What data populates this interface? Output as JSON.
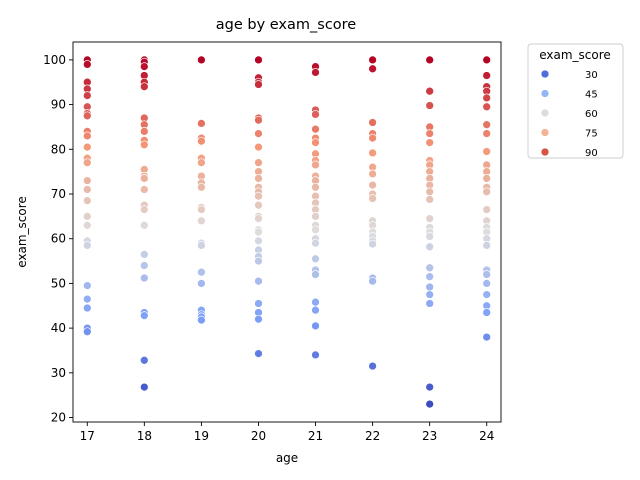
{
  "chart_data": {
    "type": "scatter",
    "title": "age by exam_score",
    "xlabel": "age",
    "ylabel": "exam_score",
    "x_ticks": [
      17,
      18,
      19,
      20,
      21,
      22,
      23,
      24
    ],
    "y_ticks": [
      20,
      30,
      40,
      50,
      60,
      70,
      80,
      90,
      100
    ],
    "xlim": [
      16.75,
      24.25
    ],
    "ylim": [
      19.0,
      104.0
    ],
    "grid": false,
    "legend": {
      "title": "exam_score",
      "placement": "outside-right",
      "entries": [
        {
          "label": "30",
          "color": "#4e6ed8"
        },
        {
          "label": "45",
          "color": "#95b5f7"
        },
        {
          "label": "60",
          "color": "#dddcdc"
        },
        {
          "label": "75",
          "color": "#f4b393"
        },
        {
          "label": "90",
          "color": "#d75445"
        }
      ]
    },
    "hue_range": [
      23,
      100
    ],
    "points": [
      {
        "x": 17,
        "y": 100
      },
      {
        "x": 17,
        "y": 99
      },
      {
        "x": 17,
        "y": 95
      },
      {
        "x": 17,
        "y": 93.5
      },
      {
        "x": 17,
        "y": 92
      },
      {
        "x": 17,
        "y": 89.5
      },
      {
        "x": 17,
        "y": 88
      },
      {
        "x": 17,
        "y": 87.5
      },
      {
        "x": 17,
        "y": 84
      },
      {
        "x": 17,
        "y": 83
      },
      {
        "x": 17,
        "y": 80.5
      },
      {
        "x": 17,
        "y": 78
      },
      {
        "x": 17,
        "y": 77
      },
      {
        "x": 17,
        "y": 73
      },
      {
        "x": 17,
        "y": 71
      },
      {
        "x": 17,
        "y": 68.5
      },
      {
        "x": 17,
        "y": 65
      },
      {
        "x": 17,
        "y": 63
      },
      {
        "x": 17,
        "y": 59.5
      },
      {
        "x": 17,
        "y": 58.5
      },
      {
        "x": 17,
        "y": 49.5
      },
      {
        "x": 17,
        "y": 46.5
      },
      {
        "x": 17,
        "y": 44.5
      },
      {
        "x": 17,
        "y": 40
      },
      {
        "x": 17,
        "y": 39.2
      },
      {
        "x": 18,
        "y": 100
      },
      {
        "x": 18,
        "y": 99.5
      },
      {
        "x": 18,
        "y": 98.5
      },
      {
        "x": 18,
        "y": 96.5
      },
      {
        "x": 18,
        "y": 95
      },
      {
        "x": 18,
        "y": 94
      },
      {
        "x": 18,
        "y": 87
      },
      {
        "x": 18,
        "y": 85.5
      },
      {
        "x": 18,
        "y": 84
      },
      {
        "x": 18,
        "y": 82
      },
      {
        "x": 18,
        "y": 81
      },
      {
        "x": 18,
        "y": 75.5
      },
      {
        "x": 18,
        "y": 74
      },
      {
        "x": 18,
        "y": 73.5
      },
      {
        "x": 18,
        "y": 71
      },
      {
        "x": 18,
        "y": 67.5
      },
      {
        "x": 18,
        "y": 66.5
      },
      {
        "x": 18,
        "y": 63
      },
      {
        "x": 18,
        "y": 56.5
      },
      {
        "x": 18,
        "y": 54
      },
      {
        "x": 18,
        "y": 51.2
      },
      {
        "x": 18,
        "y": 43.5
      },
      {
        "x": 18,
        "y": 42.8
      },
      {
        "x": 18,
        "y": 32.8
      },
      {
        "x": 18,
        "y": 26.8
      },
      {
        "x": 19,
        "y": 100
      },
      {
        "x": 19,
        "y": 85.8
      },
      {
        "x": 19,
        "y": 82.5
      },
      {
        "x": 19,
        "y": 81.8
      },
      {
        "x": 19,
        "y": 78
      },
      {
        "x": 19,
        "y": 77
      },
      {
        "x": 19,
        "y": 74
      },
      {
        "x": 19,
        "y": 72.5
      },
      {
        "x": 19,
        "y": 71.5
      },
      {
        "x": 19,
        "y": 67
      },
      {
        "x": 19,
        "y": 66.5
      },
      {
        "x": 19,
        "y": 64
      },
      {
        "x": 19,
        "y": 59
      },
      {
        "x": 19,
        "y": 58.5
      },
      {
        "x": 19,
        "y": 52.5
      },
      {
        "x": 19,
        "y": 50
      },
      {
        "x": 19,
        "y": 44
      },
      {
        "x": 19,
        "y": 43
      },
      {
        "x": 19,
        "y": 42.5
      },
      {
        "x": 19,
        "y": 41.8
      },
      {
        "x": 20,
        "y": 100
      },
      {
        "x": 20,
        "y": 96
      },
      {
        "x": 20,
        "y": 95
      },
      {
        "x": 20,
        "y": 94.5
      },
      {
        "x": 20,
        "y": 87
      },
      {
        "x": 20,
        "y": 86.5
      },
      {
        "x": 20,
        "y": 83.5
      },
      {
        "x": 20,
        "y": 80.5
      },
      {
        "x": 20,
        "y": 77
      },
      {
        "x": 20,
        "y": 75
      },
      {
        "x": 20,
        "y": 73.5
      },
      {
        "x": 20,
        "y": 71.5
      },
      {
        "x": 20,
        "y": 70.5
      },
      {
        "x": 20,
        "y": 69.5
      },
      {
        "x": 20,
        "y": 67.5
      },
      {
        "x": 20,
        "y": 65
      },
      {
        "x": 20,
        "y": 64.5
      },
      {
        "x": 20,
        "y": 62
      },
      {
        "x": 20,
        "y": 61.5
      },
      {
        "x": 20,
        "y": 59.5
      },
      {
        "x": 20,
        "y": 57.5
      },
      {
        "x": 20,
        "y": 56
      },
      {
        "x": 20,
        "y": 55
      },
      {
        "x": 20,
        "y": 50.5
      },
      {
        "x": 20,
        "y": 45.5
      },
      {
        "x": 20,
        "y": 43.5
      },
      {
        "x": 20,
        "y": 42
      },
      {
        "x": 20,
        "y": 34.3
      },
      {
        "x": 21,
        "y": 98.5
      },
      {
        "x": 21,
        "y": 97.2
      },
      {
        "x": 21,
        "y": 88.8
      },
      {
        "x": 21,
        "y": 87.8
      },
      {
        "x": 21,
        "y": 84.5
      },
      {
        "x": 21,
        "y": 82.5
      },
      {
        "x": 21,
        "y": 81.5
      },
      {
        "x": 21,
        "y": 79
      },
      {
        "x": 21,
        "y": 77.5
      },
      {
        "x": 21,
        "y": 76.5
      },
      {
        "x": 21,
        "y": 74
      },
      {
        "x": 21,
        "y": 73
      },
      {
        "x": 21,
        "y": 71.5
      },
      {
        "x": 21,
        "y": 69.5
      },
      {
        "x": 21,
        "y": 68
      },
      {
        "x": 21,
        "y": 66.5
      },
      {
        "x": 21,
        "y": 65
      },
      {
        "x": 21,
        "y": 63
      },
      {
        "x": 21,
        "y": 62
      },
      {
        "x": 21,
        "y": 60
      },
      {
        "x": 21,
        "y": 59
      },
      {
        "x": 21,
        "y": 55.5
      },
      {
        "x": 21,
        "y": 53
      },
      {
        "x": 21,
        "y": 52
      },
      {
        "x": 21,
        "y": 45.8
      },
      {
        "x": 21,
        "y": 44
      },
      {
        "x": 21,
        "y": 40.5
      },
      {
        "x": 21,
        "y": 34
      },
      {
        "x": 22,
        "y": 100
      },
      {
        "x": 22,
        "y": 98
      },
      {
        "x": 22,
        "y": 86
      },
      {
        "x": 22,
        "y": 83.5
      },
      {
        "x": 22,
        "y": 82.5
      },
      {
        "x": 22,
        "y": 79.2
      },
      {
        "x": 22,
        "y": 76
      },
      {
        "x": 22,
        "y": 74.5
      },
      {
        "x": 22,
        "y": 72
      },
      {
        "x": 22,
        "y": 70
      },
      {
        "x": 22,
        "y": 69
      },
      {
        "x": 22,
        "y": 64
      },
      {
        "x": 22,
        "y": 63
      },
      {
        "x": 22,
        "y": 61.5
      },
      {
        "x": 22,
        "y": 60.5
      },
      {
        "x": 22,
        "y": 59.5
      },
      {
        "x": 22,
        "y": 58.8
      },
      {
        "x": 22,
        "y": 51.2
      },
      {
        "x": 22,
        "y": 50.5
      },
      {
        "x": 22,
        "y": 31.5
      },
      {
        "x": 23,
        "y": 100
      },
      {
        "x": 23,
        "y": 93
      },
      {
        "x": 23,
        "y": 89.8
      },
      {
        "x": 23,
        "y": 85
      },
      {
        "x": 23,
        "y": 83.5
      },
      {
        "x": 23,
        "y": 81.5
      },
      {
        "x": 23,
        "y": 77.5
      },
      {
        "x": 23,
        "y": 76.5
      },
      {
        "x": 23,
        "y": 75
      },
      {
        "x": 23,
        "y": 73.5
      },
      {
        "x": 23,
        "y": 72
      },
      {
        "x": 23,
        "y": 70.5
      },
      {
        "x": 23,
        "y": 68.8
      },
      {
        "x": 23,
        "y": 64.5
      },
      {
        "x": 23,
        "y": 62.5
      },
      {
        "x": 23,
        "y": 61.5
      },
      {
        "x": 23,
        "y": 60.5
      },
      {
        "x": 23,
        "y": 58.2
      },
      {
        "x": 23,
        "y": 53.5
      },
      {
        "x": 23,
        "y": 51.5
      },
      {
        "x": 23,
        "y": 49.2
      },
      {
        "x": 23,
        "y": 47.5
      },
      {
        "x": 23,
        "y": 45.5
      },
      {
        "x": 23,
        "y": 26.8
      },
      {
        "x": 23,
        "y": 23
      },
      {
        "x": 24,
        "y": 100
      },
      {
        "x": 24,
        "y": 96.5
      },
      {
        "x": 24,
        "y": 94
      },
      {
        "x": 24,
        "y": 93
      },
      {
        "x": 24,
        "y": 91.5
      },
      {
        "x": 24,
        "y": 89.5
      },
      {
        "x": 24,
        "y": 85.5
      },
      {
        "x": 24,
        "y": 83.5
      },
      {
        "x": 24,
        "y": 79.5
      },
      {
        "x": 24,
        "y": 76.5
      },
      {
        "x": 24,
        "y": 75
      },
      {
        "x": 24,
        "y": 73.5
      },
      {
        "x": 24,
        "y": 71.5
      },
      {
        "x": 24,
        "y": 70.5
      },
      {
        "x": 24,
        "y": 66.5
      },
      {
        "x": 24,
        "y": 64
      },
      {
        "x": 24,
        "y": 62.5
      },
      {
        "x": 24,
        "y": 61.5
      },
      {
        "x": 24,
        "y": 60
      },
      {
        "x": 24,
        "y": 58.5
      },
      {
        "x": 24,
        "y": 53
      },
      {
        "x": 24,
        "y": 52
      },
      {
        "x": 24,
        "y": 50
      },
      {
        "x": 24,
        "y": 47.5
      },
      {
        "x": 24,
        "y": 45
      },
      {
        "x": 24,
        "y": 43.5
      },
      {
        "x": 24,
        "y": 38
      }
    ]
  }
}
